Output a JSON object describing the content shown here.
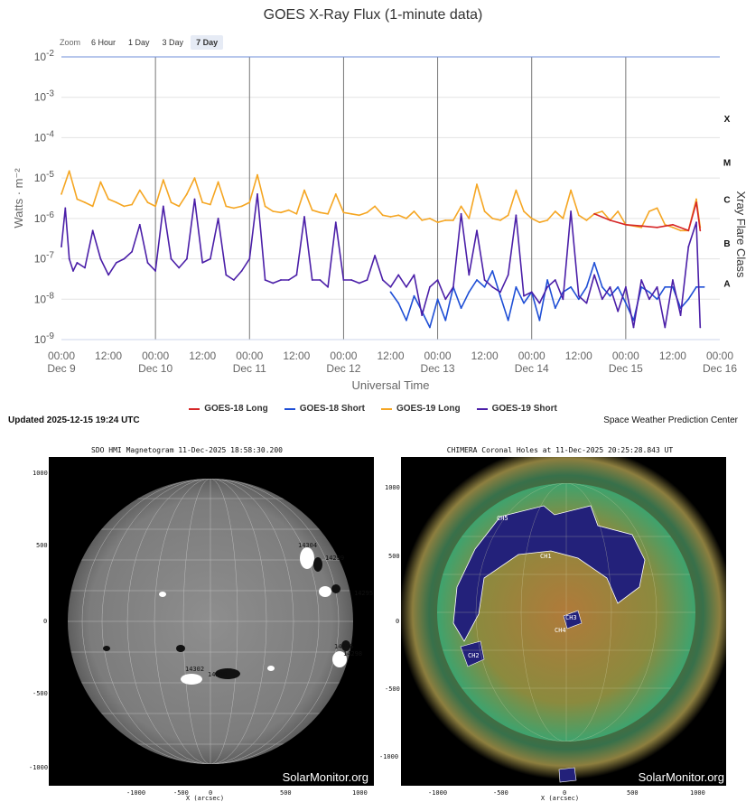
{
  "chart_title": "GOES X-Ray Flux (1-minute data)",
  "zoom": {
    "label": "Zoom",
    "options": [
      "6 Hour",
      "1 Day",
      "3 Day",
      "7 Day"
    ],
    "selected": "7 Day"
  },
  "updated": "Updated 2025-12-15 19:24 UTC",
  "credit": "Space Weather Prediction Center",
  "colors": {
    "goes18_long": "#d62728",
    "goes18_short": "#1f4fd6",
    "goes19_long": "#f5a623",
    "goes19_short": "#4b1fa8",
    "grid": "#e3e3e3",
    "axis": "#6f8fd8"
  },
  "chart_data": {
    "type": "line",
    "title": "GOES X-Ray Flux (1-minute data)",
    "xlabel": "Universal Time",
    "ylabel": "Watts · m⁻²",
    "y2label": "Xray Flare Class",
    "yscale": "log",
    "ylim": [
      1e-09,
      0.01
    ],
    "y_ticks": [
      {
        "base": "10",
        "exp": "-2",
        "value": 0.01
      },
      {
        "base": "10",
        "exp": "-3",
        "value": 0.001
      },
      {
        "base": "10",
        "exp": "-4",
        "value": 0.0001
      },
      {
        "base": "10",
        "exp": "-5",
        "value": 1e-05
      },
      {
        "base": "10",
        "exp": "-6",
        "value": 1e-06
      },
      {
        "base": "10",
        "exp": "-7",
        "value": 1e-07
      },
      {
        "base": "10",
        "exp": "-8",
        "value": 1e-08
      },
      {
        "base": "10",
        "exp": "-9",
        "value": 1e-09
      }
    ],
    "flare_classes": [
      {
        "label": "X",
        "value": 0.0003
      },
      {
        "label": "M",
        "value": 2.5e-05
      },
      {
        "label": "C",
        "value": 3e-06
      },
      {
        "label": "B",
        "value": 2.5e-07
      },
      {
        "label": "A",
        "value": 2.5e-08
      }
    ],
    "x_ticks": [
      {
        "time": "00:00",
        "date": "Dec 9",
        "hour": 0
      },
      {
        "time": "12:00",
        "date": "",
        "hour": 12
      },
      {
        "time": "00:00",
        "date": "Dec 10",
        "hour": 24
      },
      {
        "time": "12:00",
        "date": "",
        "hour": 36
      },
      {
        "time": "00:00",
        "date": "Dec 11",
        "hour": 48
      },
      {
        "time": "12:00",
        "date": "",
        "hour": 60
      },
      {
        "time": "00:00",
        "date": "Dec 12",
        "hour": 72
      },
      {
        "time": "12:00",
        "date": "",
        "hour": 84
      },
      {
        "time": "00:00",
        "date": "Dec 13",
        "hour": 96
      },
      {
        "time": "12:00",
        "date": "",
        "hour": 108
      },
      {
        "time": "00:00",
        "date": "Dec 14",
        "hour": 120
      },
      {
        "time": "12:00",
        "date": "",
        "hour": 132
      },
      {
        "time": "00:00",
        "date": "Dec 15",
        "hour": 144
      },
      {
        "time": "12:00",
        "date": "",
        "hour": 156
      },
      {
        "time": "00:00",
        "date": "Dec 16",
        "hour": 168
      }
    ],
    "xlim_hours": [
      0,
      168
    ],
    "grid": true,
    "legend_position": "bottom",
    "series": [
      {
        "name": "GOES-18 Long",
        "color": "#d62728",
        "x": [
          136,
          140,
          144,
          148,
          152,
          156,
          160,
          162,
          163
        ],
        "y": [
          1.3e-06,
          9e-07,
          7e-07,
          6.5e-07,
          6e-07,
          7e-07,
          5e-07,
          2.5e-06,
          5e-07
        ]
      },
      {
        "name": "GOES-18 Short",
        "color": "#1f4fd6",
        "x": [
          84,
          86,
          88,
          90,
          92,
          94,
          96,
          98,
          100,
          102,
          104,
          106,
          108,
          110,
          112,
          114,
          116,
          118,
          120,
          122,
          124,
          126,
          128,
          130,
          132,
          134,
          136,
          138,
          140,
          142,
          144,
          146,
          148,
          150,
          152,
          154,
          156,
          158,
          160,
          162,
          164
        ],
        "y": [
          1.5e-08,
          8e-09,
          3e-09,
          1.2e-08,
          5e-09,
          2e-09,
          1e-08,
          3e-09,
          2e-08,
          6e-09,
          1.5e-08,
          3e-08,
          2e-08,
          5e-08,
          1.2e-08,
          3e-09,
          2e-08,
          8e-09,
          1.5e-08,
          3e-09,
          3e-08,
          6e-09,
          1.5e-08,
          2e-08,
          1e-08,
          2e-08,
          8e-08,
          2e-08,
          1.2e-08,
          2e-08,
          8e-09,
          3e-09,
          2e-08,
          1.5e-08,
          1e-08,
          2e-08,
          2e-08,
          6e-09,
          1e-08,
          2e-08,
          2e-08
        ]
      },
      {
        "name": "GOES-19 Long",
        "color": "#f5a623",
        "x": [
          0,
          2,
          4,
          6,
          8,
          10,
          12,
          14,
          16,
          18,
          20,
          22,
          24,
          26,
          28,
          30,
          32,
          34,
          36,
          38,
          40,
          42,
          44,
          46,
          48,
          50,
          52,
          54,
          56,
          58,
          60,
          62,
          64,
          66,
          68,
          70,
          72,
          74,
          76,
          78,
          80,
          82,
          84,
          86,
          88,
          90,
          92,
          94,
          96,
          98,
          100,
          102,
          104,
          106,
          108,
          110,
          112,
          114,
          116,
          118,
          120,
          122,
          124,
          126,
          128,
          130,
          132,
          134,
          136,
          138,
          140,
          142,
          144,
          146,
          148,
          150,
          152,
          154,
          156,
          158,
          160,
          162,
          163
        ],
        "y": [
          4e-06,
          1.5e-05,
          3e-06,
          2.5e-06,
          2e-06,
          8e-06,
          3e-06,
          2.5e-06,
          2e-06,
          2.2e-06,
          5e-06,
          2.5e-06,
          2e-06,
          9e-06,
          2.5e-06,
          2e-06,
          4e-06,
          1e-05,
          2.5e-06,
          2.2e-06,
          8e-06,
          2e-06,
          1.8e-06,
          2e-06,
          2.5e-06,
          1.2e-05,
          2e-06,
          1.5e-06,
          1.4e-06,
          1.6e-06,
          1.3e-06,
          5e-06,
          1.6e-06,
          1.4e-06,
          1.3e-06,
          4e-06,
          1.4e-06,
          1.3e-06,
          1.2e-06,
          1.4e-06,
          2e-06,
          1.2e-06,
          1.1e-06,
          1.2e-06,
          1e-06,
          1.5e-06,
          9e-07,
          1e-06,
          8e-07,
          9e-07,
          9e-07,
          2e-06,
          1e-06,
          7e-06,
          1.5e-06,
          1e-06,
          9e-07,
          1.2e-06,
          5e-06,
          1.5e-06,
          1e-06,
          8e-07,
          9e-07,
          1.5e-06,
          1e-06,
          5e-06,
          1.2e-06,
          9e-07,
          1.3e-06,
          1.5e-06,
          9e-07,
          1.5e-06,
          7e-07,
          6.5e-07,
          6e-07,
          1.5e-06,
          1.8e-06,
          7e-07,
          6e-07,
          5e-07,
          5e-07,
          3e-06,
          6e-07
        ]
      },
      {
        "name": "GOES-19 Short",
        "color": "#4b1fa8",
        "x": [
          0,
          1,
          2,
          3,
          4,
          6,
          8,
          10,
          12,
          14,
          16,
          18,
          20,
          22,
          24,
          26,
          28,
          30,
          32,
          34,
          36,
          38,
          40,
          42,
          44,
          46,
          48,
          50,
          52,
          54,
          56,
          58,
          60,
          62,
          64,
          66,
          68,
          70,
          72,
          74,
          76,
          78,
          80,
          82,
          84,
          86,
          88,
          90,
          92,
          94,
          96,
          98,
          100,
          102,
          104,
          106,
          108,
          110,
          112,
          114,
          116,
          118,
          120,
          122,
          124,
          126,
          128,
          130,
          132,
          134,
          136,
          138,
          140,
          142,
          144,
          146,
          148,
          150,
          152,
          154,
          156,
          158,
          160,
          162,
          163
        ],
        "y": [
          2e-07,
          1.8e-06,
          1e-07,
          5e-08,
          8e-08,
          6e-08,
          5e-07,
          1e-07,
          4e-08,
          8e-08,
          1e-07,
          1.5e-07,
          7e-07,
          8e-08,
          5e-08,
          2e-06,
          1e-07,
          6e-08,
          1e-07,
          3e-06,
          8e-08,
          1e-07,
          1e-06,
          4e-08,
          3e-08,
          5e-08,
          1e-07,
          4e-06,
          3e-08,
          2.5e-08,
          3e-08,
          3e-08,
          4e-08,
          1.1e-06,
          3e-08,
          3e-08,
          2e-08,
          8e-07,
          3e-08,
          3e-08,
          2.5e-08,
          3e-08,
          1.2e-07,
          3e-08,
          2e-08,
          4e-08,
          2e-08,
          4e-08,
          4e-09,
          2e-08,
          3e-08,
          1e-08,
          2e-08,
          1.3e-06,
          4e-08,
          5e-07,
          3e-08,
          2e-08,
          1.5e-08,
          4e-08,
          1.2e-06,
          1.2e-08,
          1.5e-08,
          8e-09,
          2e-08,
          3e-08,
          1e-08,
          1.5e-06,
          1.2e-08,
          8e-09,
          4e-08,
          1e-08,
          2e-08,
          5e-09,
          2e-08,
          2e-09,
          3e-08,
          1e-08,
          2e-08,
          2e-09,
          3e-08,
          4e-09,
          2e-07,
          8e-07,
          2e-09
        ]
      }
    ]
  },
  "hmi": {
    "title": "SDO HMI Magnetogram 11-Dec-2025 18:58:30.200",
    "watermark": "SolarMonitor.org",
    "xlabel": "X (arcsec)",
    "x_ticks": [
      "-1000",
      "-500",
      "0",
      "500",
      "1000"
    ],
    "y_ticks": [
      "1000",
      "500",
      "0",
      "-500",
      "-1000"
    ],
    "regions": [
      "14304",
      "14299",
      "14295",
      "14296",
      "14298",
      "14302",
      "14300"
    ]
  },
  "chimera": {
    "title": "CHIMERA Coronal Holes at 11-Dec-2025 20:25:28.843 UT",
    "watermark": "SolarMonitor.org",
    "xlabel": "X (arcsec)",
    "x_ticks": [
      "-1000",
      "-500",
      "0",
      "500",
      "1000"
    ],
    "y_ticks": [
      "1000",
      "500",
      "0",
      "-500",
      "-1000"
    ],
    "holes": [
      "CH5",
      "CH1",
      "CH3",
      "CH4",
      "CH2"
    ]
  }
}
